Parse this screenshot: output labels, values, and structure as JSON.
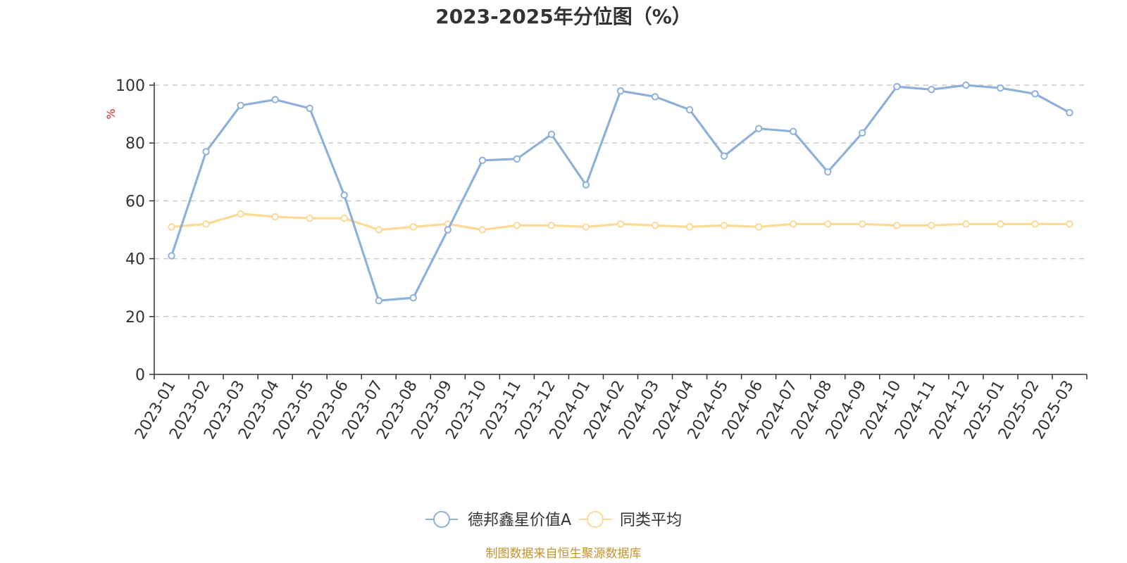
{
  "chart_data": {
    "type": "line",
    "title": "2023-2025年分位图（%）",
    "ylabel": "%",
    "xlabel": "",
    "ylim": [
      0,
      100
    ],
    "yticks": [
      0,
      20,
      40,
      60,
      80,
      100
    ],
    "grid": true,
    "legend_position": "bottom-center",
    "categories": [
      "2023-01",
      "2023-02",
      "2023-03",
      "2023-04",
      "2023-05",
      "2023-06",
      "2023-07",
      "2023-08",
      "2023-09",
      "2023-10",
      "2023-11",
      "2023-12",
      "2024-01",
      "2024-02",
      "2024-03",
      "2024-04",
      "2024-05",
      "2024-06",
      "2024-07",
      "2024-08",
      "2024-09",
      "2024-10",
      "2024-11",
      "2024-12",
      "2025-01",
      "2025-02",
      "2025-03"
    ],
    "series": [
      {
        "name": "德邦鑫星价值A",
        "color": "#8eb0d9",
        "values": [
          41,
          77,
          93,
          95,
          92,
          62,
          25.5,
          26.5,
          50,
          74,
          74.5,
          83,
          65.5,
          98,
          96,
          91.5,
          75.5,
          85,
          84,
          70,
          83.5,
          99.5,
          98.5,
          100,
          99,
          97,
          90.5
        ]
      },
      {
        "name": "同类平均",
        "color": "#fcd994",
        "values": [
          51,
          52,
          55.5,
          54.5,
          54,
          54,
          50,
          51,
          52,
          50,
          51.5,
          51.5,
          51,
          52,
          51.5,
          51,
          51.5,
          51,
          52,
          52,
          52,
          51.5,
          51.5,
          52,
          52,
          52,
          52
        ]
      }
    ],
    "source": "制图数据来自恒生聚源数据库"
  }
}
